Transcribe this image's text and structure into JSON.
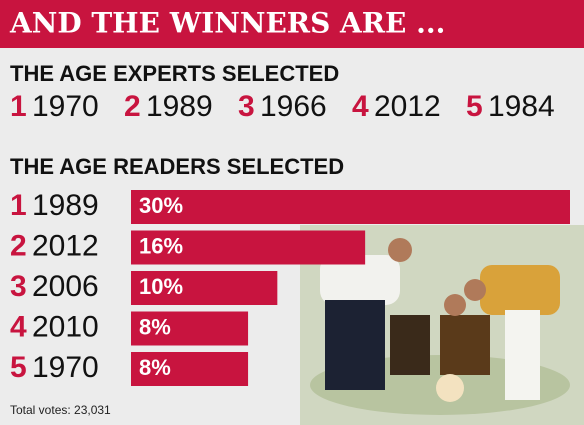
{
  "title": "AND THE WINNERS ARE ...",
  "experts": {
    "heading": "THE AGE EXPERTS SELECTED",
    "items": [
      {
        "rank": 1,
        "year": "1970"
      },
      {
        "rank": 2,
        "year": "1989"
      },
      {
        "rank": 3,
        "year": "1966"
      },
      {
        "rank": 4,
        "year": "2012"
      },
      {
        "rank": 5,
        "year": "1984"
      }
    ]
  },
  "chart_data": {
    "type": "bar",
    "title": "THE AGE READERS SELECTED",
    "ranks": [
      1,
      2,
      3,
      4,
      5
    ],
    "categories": [
      "1989",
      "2012",
      "2006",
      "2010",
      "1970"
    ],
    "values": [
      30,
      16,
      10,
      8,
      8
    ],
    "value_labels": [
      "30%",
      "16%",
      "10%",
      "8%",
      "8%"
    ],
    "color": "#c8143f",
    "xlim": [
      0,
      30
    ]
  },
  "footer": "Total votes: 23,031"
}
